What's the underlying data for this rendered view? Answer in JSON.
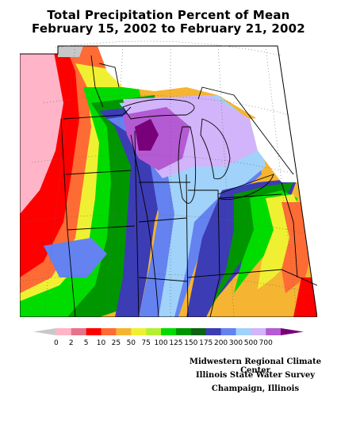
{
  "title": {
    "line1": "Total Precipitation Percent of Mean",
    "line2": "February 15, 2002 to February 21, 2002"
  },
  "legend": {
    "labels": [
      "0",
      "2",
      "5",
      "10",
      "25",
      "50",
      "75",
      "100",
      "125",
      "150",
      "175",
      "200",
      "300",
      "500",
      "700"
    ],
    "colors": [
      "#c8c8c8",
      "#ffb4c8",
      "#e6738c",
      "#ff0000",
      "#ff6b35",
      "#f5b432",
      "#f0f032",
      "#b4f032",
      "#00dc00",
      "#009600",
      "#0a6414",
      "#3c3cb4",
      "#6482f0",
      "#a0d2fa",
      "#d2b4fa",
      "#b45ad2",
      "#780078"
    ]
  },
  "credits": {
    "line1": "Midwestern Regional Climate Center",
    "line2": "Illinois State Water Survey",
    "line3": "Champaign, Illinois"
  }
}
